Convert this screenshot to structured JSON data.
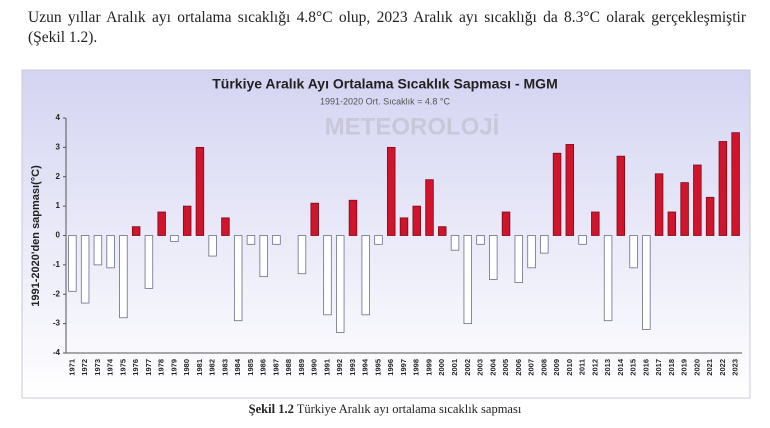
{
  "paragraph": "Uzun yıllar Aralık ayı ortalama sıcaklığı 4.8°C olup, 2023 Aralık ayı sıcaklığı da 8.3°C olarak gerçekleşmiştir (Şekil 1.2).",
  "chart_data": {
    "type": "bar",
    "title": "Türkiye Aralık Ayı Ortalama Sıcaklık Sapması - MGM",
    "subtitle": "1991-2020 Ort. Sıcaklık = 4.8 °C",
    "watermark": "METEOROLOJİ",
    "y_label": "1991-2020'den sapması(°C)",
    "categories": [
      "1971",
      "1972",
      "1973",
      "1974",
      "1975",
      "1976",
      "1977",
      "1978",
      "1979",
      "1980",
      "1981",
      "1982",
      "1983",
      "1984",
      "1985",
      "1986",
      "1987",
      "1988",
      "1989",
      "1990",
      "1991",
      "1992",
      "1993",
      "1994",
      "1995",
      "1996",
      "1997",
      "1998",
      "1999",
      "2000",
      "2001",
      "2002",
      "2003",
      "2004",
      "2005",
      "2006",
      "2007",
      "2008",
      "2009",
      "2010",
      "2011",
      "2012",
      "2013",
      "2014",
      "2015",
      "2016",
      "2017",
      "2018",
      "2019",
      "2020",
      "2021",
      "2022",
      "2023"
    ],
    "values": [
      -1.9,
      -2.3,
      -1.0,
      -1.1,
      -2.8,
      0.3,
      -1.8,
      0.8,
      -0.2,
      1.0,
      3.0,
      -0.7,
      0.6,
      -2.9,
      -0.3,
      -1.4,
      -0.3,
      0.0,
      -1.3,
      1.1,
      -2.7,
      -3.3,
      1.2,
      -2.7,
      -0.3,
      3.0,
      0.6,
      1.0,
      1.9,
      0.3,
      -0.5,
      -3.0,
      -0.3,
      -1.5,
      0.8,
      -1.6,
      -1.1,
      -0.6,
      2.8,
      3.1,
      -0.3,
      0.8,
      -2.9,
      2.7,
      -1.1,
      -3.2,
      2.1,
      0.8,
      1.8,
      2.4,
      1.3,
      3.2,
      3.5
    ],
    "positive_color": "#d0142c",
    "negative_color": "#ffffff",
    "ylim": [
      -4,
      4
    ],
    "yticks": [
      -4,
      -3,
      -2,
      -1,
      0,
      1,
      2,
      3,
      4
    ]
  },
  "caption": {
    "label": "Şekil 1.2",
    "text": "Türkiye Aralık ayı ortalama sıcaklık sapması"
  }
}
